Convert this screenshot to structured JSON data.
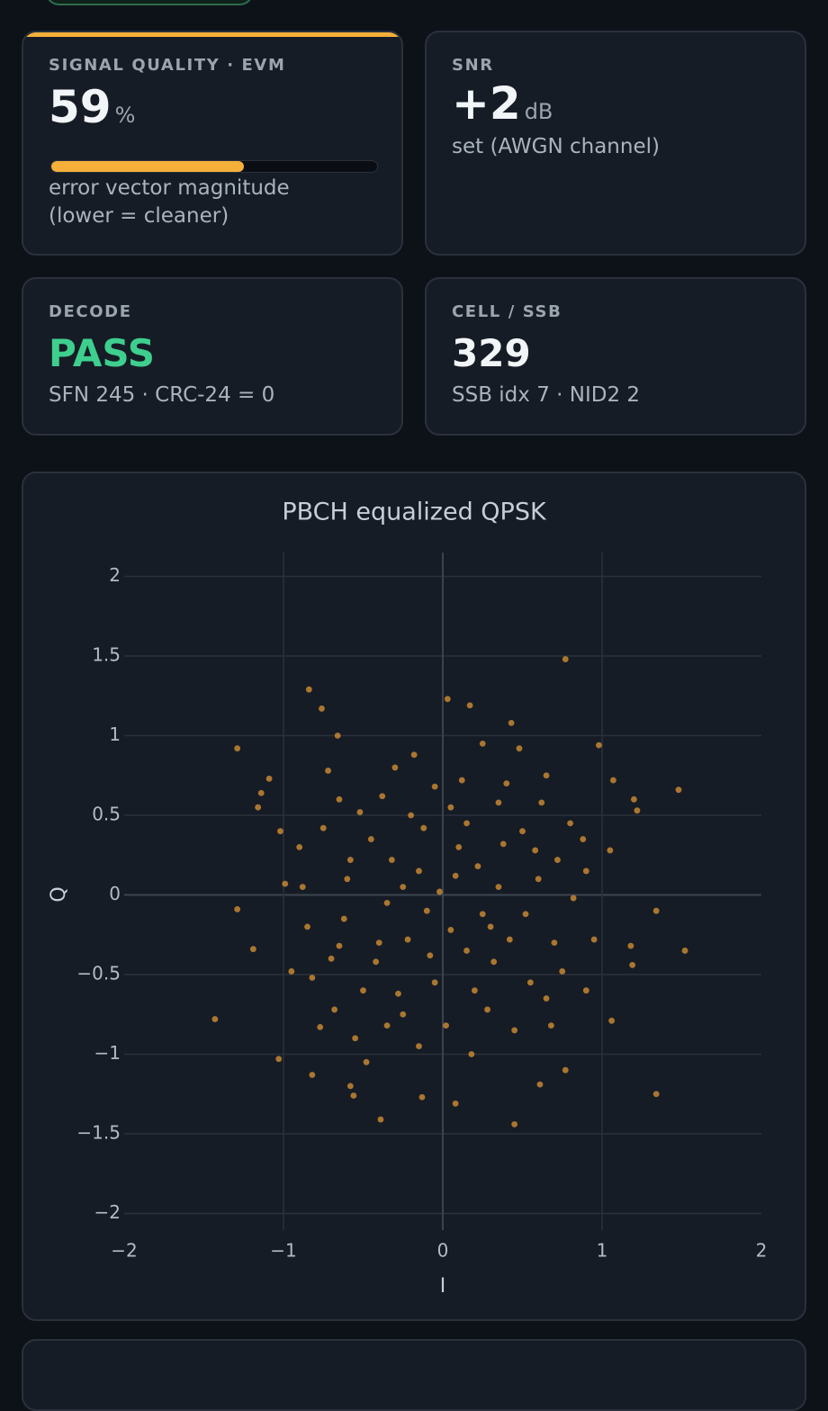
{
  "cards": [
    {
      "label": "SIGNAL QUALITY · EVM",
      "value": 59,
      "unit": "%",
      "description": [
        "error vector magnitude",
        "(lower = cleaner)"
      ]
    },
    {
      "label": "SNR",
      "value": "+2",
      "unit": "dB",
      "description": "set (AWGN channel)"
    },
    {
      "label": "DECODE",
      "value": "PASS",
      "description": "SFN 245 · CRC-24 = 0"
    },
    {
      "label": "CELL / SSB",
      "value": 329,
      "description": "SSB idx 7 · NID2 2"
    }
  ],
  "chart_data": {
    "type": "scatter",
    "title": "PBCH equalized QPSK",
    "x_label": "I",
    "y_label": "Q",
    "color": "#e39a35",
    "grid": true,
    "xlim": [
      -2,
      2
    ],
    "ylim": [
      -2.15,
      2.15
    ],
    "xticks": [
      {
        "value": -2,
        "label": "−2"
      },
      {
        "value": -1,
        "label": "−1"
      },
      0,
      1,
      2
    ],
    "yticks": [
      {
        "value": -2,
        "label": "−2"
      },
      {
        "value": -1.5,
        "label": "−1.5"
      },
      {
        "value": -1,
        "label": "−1"
      },
      {
        "value": -0.5,
        "label": "−0.5"
      },
      0,
      0.5,
      1,
      1.5,
      2
    ],
    "x": [
      0.77,
      -1.43,
      1.48,
      1.52,
      1.34,
      -1.29,
      -0.39,
      0.45,
      -0.84,
      0.03,
      -1.29,
      -1.19,
      -1.03,
      1.06,
      1.34,
      0.17,
      -0.76,
      -0.66,
      0.43,
      0.98,
      1.07,
      1.2,
      1.22,
      -1.14,
      -1.09,
      -1.16,
      -1.02,
      -0.99,
      -0.77,
      -0.82,
      -0.58,
      -0.56,
      0.08,
      -0.13,
      0.61,
      0.77,
      1.19,
      1.18,
      1.05,
      0.9,
      0.1,
      -0.2,
      0.3,
      -0.4,
      0.5,
      -0.6,
      0.2,
      -0.1,
      0.4,
      -0.5,
      0.7,
      -0.3,
      0.6,
      -0.7,
      0.05,
      -0.25,
      0.35,
      -0.45,
      0.55,
      -0.15,
      0.25,
      -0.65,
      0.8,
      -0.85,
      0.15,
      -0.35,
      0.45,
      -0.55,
      0.65,
      -0.05,
      0.9,
      -0.9,
      0.12,
      -0.32,
      0.38,
      -0.42,
      0.52,
      -0.62,
      0.72,
      -0.72,
      0.02,
      -0.12,
      0.22,
      -0.22,
      0.32,
      -0.52,
      0.62,
      -0.82,
      0.82,
      -0.02,
      0.18,
      -0.18,
      0.28,
      -0.28,
      0.48,
      -0.48,
      0.68,
      -0.68,
      0.88,
      -0.88,
      0.08,
      -0.08,
      0.58,
      -0.58,
      0.42,
      -0.38,
      0.95,
      -0.95,
      0.15,
      -0.15,
      0.35,
      -0.35,
      0.75,
      -0.75,
      0.05,
      -0.05,
      0.25,
      -0.25,
      0.65,
      -0.65
    ],
    "y": [
      1.48,
      -0.78,
      0.66,
      -0.35,
      -1.25,
      0.92,
      -1.41,
      -1.44,
      1.29,
      1.23,
      -0.09,
      -0.34,
      -1.03,
      -0.79,
      -0.1,
      1.19,
      1.17,
      1.0,
      1.08,
      0.94,
      0.72,
      0.6,
      0.53,
      0.64,
      0.73,
      0.55,
      0.4,
      0.07,
      -0.83,
      -1.13,
      -1.2,
      -1.26,
      -1.31,
      -1.27,
      -1.19,
      -1.1,
      -0.44,
      -0.32,
      0.28,
      0.15,
      0.3,
      0.5,
      -0.2,
      -0.3,
      0.4,
      0.1,
      -0.6,
      -0.1,
      0.7,
      -0.6,
      -0.3,
      0.8,
      0.1,
      -0.4,
      0.55,
      -0.75,
      0.05,
      0.35,
      -0.55,
      0.15,
      0.95,
      0.6,
      0.45,
      -0.2,
      -0.35,
      -0.05,
      -0.85,
      -0.9,
      0.75,
      -0.55,
      -0.6,
      0.3,
      0.72,
      0.22,
      0.32,
      -0.42,
      -0.12,
      -0.15,
      0.22,
      0.78,
      -0.82,
      0.42,
      0.18,
      -0.28,
      -0.42,
      0.52,
      0.58,
      -0.52,
      -0.02,
      0.02,
      -1.0,
      0.88,
      -0.72,
      -0.62,
      0.92,
      -1.05,
      -0.82,
      -0.72,
      0.35,
      0.05,
      0.12,
      -0.38,
      0.28,
      0.22,
      -0.28,
      0.62,
      -0.28,
      -0.48,
      0.45,
      -0.95,
      0.58,
      -0.82,
      -0.48,
      0.42,
      -0.22,
      0.68,
      -0.12,
      0.05,
      -0.65,
      -0.32
    ]
  }
}
